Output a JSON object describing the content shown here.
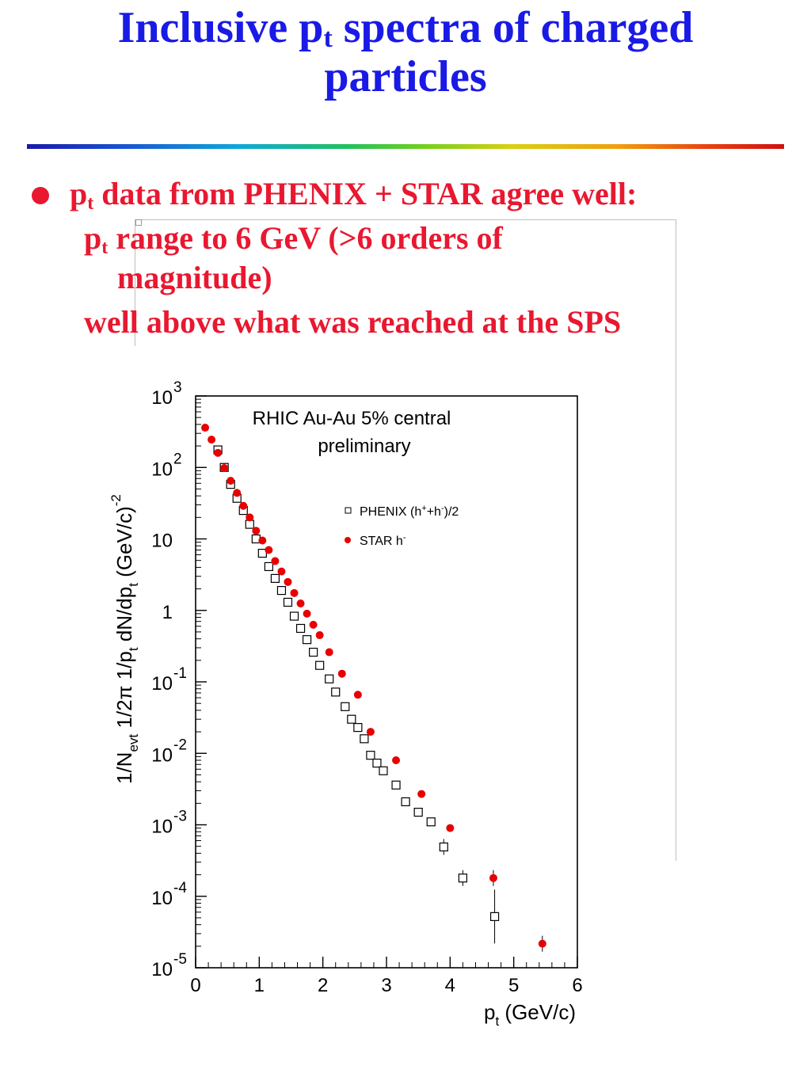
{
  "slide": {
    "title_main": "Inclusive p",
    "title_sub": "t",
    "title_rest": " spectra of charged",
    "title_line2": "particles",
    "bullet": {
      "p": "p",
      "p_sub": "t",
      "text": " data from PHENIX + STAR agree well:"
    },
    "sub1": {
      "p": "p",
      "p_sub": "t",
      "text": " range to 6 GeV (>6 orders of",
      "cont": "magnitude)"
    },
    "sub2": "well above what was reached at the SPS"
  },
  "colors": {
    "title": "#1a1ae6",
    "bullet_text": "#e81830",
    "star_marker": "#e80000",
    "phenix_marker": "#000000"
  },
  "chart_data": {
    "type": "scatter",
    "log_y": true,
    "annotation_line1": "RHIC Au-Au 5% central",
    "annotation_line2": "preliminary",
    "xlabel": {
      "main": "p",
      "sub": "t",
      "rest": " (GeV/c)"
    },
    "ylabel": {
      "part1": "1/N",
      "sub1": "evt",
      "part2": " 1/2",
      "pi": "π",
      "part3": " 1/p",
      "sub2": "t",
      "part4": " dN/dp",
      "sub3": "t",
      "part5": " (GeV/c)",
      "sup": "-2"
    },
    "xlim": [
      0,
      6
    ],
    "ylim": [
      1e-05,
      1000
    ],
    "x_ticks": [
      "0",
      "1",
      "2",
      "3",
      "4",
      "5",
      "6"
    ],
    "y_ticks": [
      {
        "base": "10",
        "exp": "3"
      },
      {
        "base": "10",
        "exp": "2"
      },
      {
        "base": "10",
        "exp": ""
      },
      {
        "base": "1",
        "exp": ""
      },
      {
        "base": "10",
        "exp": "-1"
      },
      {
        "base": "10",
        "exp": "-2"
      },
      {
        "base": "10",
        "exp": "-3"
      },
      {
        "base": "10",
        "exp": "-4"
      },
      {
        "base": "10",
        "exp": "-5"
      }
    ],
    "legend_position": "upper right",
    "series": [
      {
        "name": "PHENIX (h",
        "name_sup1": "+",
        "name_mid": "+h",
        "name_sup2": "-",
        "name_end": ")/2",
        "marker": "open-square",
        "points": [
          [
            0.35,
            176
          ],
          [
            0.45,
            100
          ],
          [
            0.55,
            58
          ],
          [
            0.65,
            37
          ],
          [
            0.75,
            25
          ],
          [
            0.85,
            16
          ],
          [
            0.95,
            10
          ],
          [
            1.05,
            6.3
          ],
          [
            1.15,
            4.1
          ],
          [
            1.25,
            2.8
          ],
          [
            1.35,
            1.9
          ],
          [
            1.45,
            1.3
          ],
          [
            1.55,
            0.83
          ],
          [
            1.65,
            0.56
          ],
          [
            1.75,
            0.39
          ],
          [
            1.85,
            0.26
          ],
          [
            1.95,
            0.17
          ],
          [
            2.1,
            0.11
          ],
          [
            2.2,
            0.072
          ],
          [
            2.35,
            0.045
          ],
          [
            2.45,
            0.03
          ],
          [
            2.55,
            0.023
          ],
          [
            2.65,
            0.016
          ],
          [
            2.75,
            0.0094
          ],
          [
            2.85,
            0.0073
          ],
          [
            2.95,
            0.0057
          ],
          [
            3.15,
            0.0036
          ],
          [
            3.3,
            0.0021
          ],
          [
            3.5,
            0.0015
          ],
          [
            3.7,
            0.0011
          ],
          [
            3.9,
            0.00049
          ],
          [
            4.2,
            0.00018
          ],
          [
            4.7,
            5.2e-05
          ]
        ]
      },
      {
        "name": "STAR h",
        "name_sup": "-",
        "marker": "filled-circle",
        "points": [
          [
            0.15,
            360
          ],
          [
            0.25,
            245
          ],
          [
            0.35,
            160
          ],
          [
            0.45,
            98
          ],
          [
            0.55,
            65
          ],
          [
            0.65,
            44
          ],
          [
            0.75,
            29
          ],
          [
            0.85,
            20
          ],
          [
            0.95,
            13
          ],
          [
            1.05,
            9.5
          ],
          [
            1.15,
            7.0
          ],
          [
            1.25,
            4.9
          ],
          [
            1.35,
            3.5
          ],
          [
            1.45,
            2.5
          ],
          [
            1.55,
            1.75
          ],
          [
            1.65,
            1.25
          ],
          [
            1.75,
            0.9
          ],
          [
            1.85,
            0.63
          ],
          [
            1.95,
            0.45
          ],
          [
            2.1,
            0.26
          ],
          [
            2.3,
            0.13
          ],
          [
            2.55,
            0.066
          ],
          [
            2.75,
            0.02
          ],
          [
            3.15,
            0.008
          ],
          [
            3.55,
            0.0027
          ],
          [
            4.0,
            0.0009
          ],
          [
            4.68,
            0.00018
          ],
          [
            5.45,
            2.17e-05
          ]
        ]
      }
    ]
  }
}
